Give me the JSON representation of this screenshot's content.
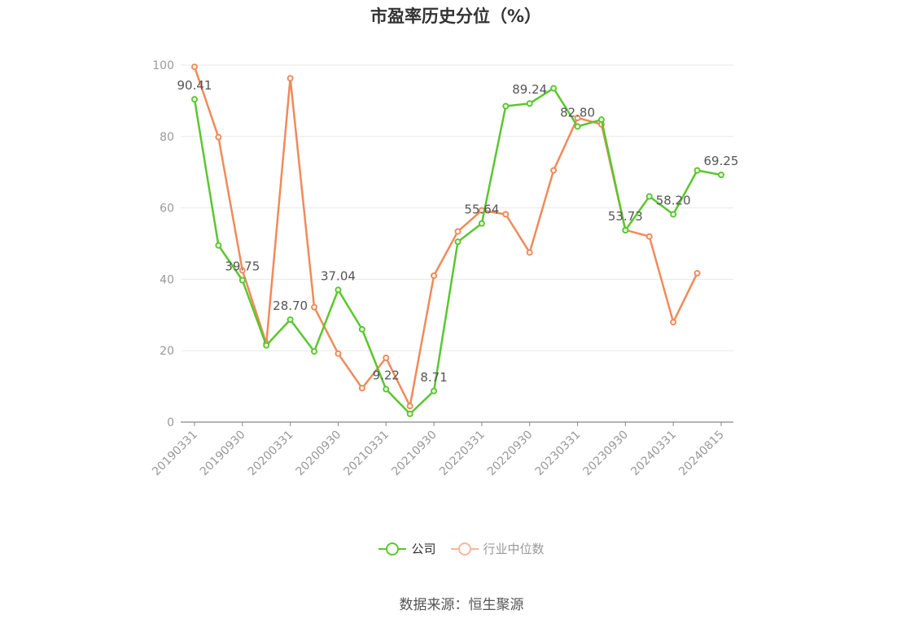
{
  "title": "市盈率历史分位（%）",
  "source": "数据来源：恒生聚源",
  "colors": {
    "company": "#5ac72f",
    "industry": "#f08a5a",
    "industry_legend": "#f5b89a",
    "axis": "#999999",
    "grid": "#e6e8ee",
    "label": "#555555"
  },
  "chart_data": {
    "type": "line",
    "ylim": [
      0,
      100
    ],
    "yticks": [
      0,
      20,
      40,
      60,
      80,
      100
    ],
    "grid": true,
    "legend_position": "bottom",
    "x": [
      "20190331",
      "20190630",
      "20190930",
      "20191231",
      "20200331",
      "20200630",
      "20200930",
      "20201231",
      "20210331",
      "20210630",
      "20210930",
      "20211231",
      "20220331",
      "20220630",
      "20220930",
      "20221231",
      "20230331",
      "20230630",
      "20230930",
      "20231231",
      "20240331",
      "20240630",
      "20240815"
    ],
    "xtick_labels": [
      "20190331",
      "20190930",
      "20200331",
      "20200930",
      "20210331",
      "20210930",
      "20220331",
      "20220930",
      "20230331",
      "20230930",
      "20240331",
      "20240815"
    ],
    "series": [
      {
        "name": "公司",
        "values": [
          90.41,
          49.5,
          39.75,
          21.5,
          28.7,
          19.8,
          37.04,
          26.0,
          9.22,
          2.3,
          8.71,
          50.5,
          55.64,
          88.5,
          89.24,
          93.5,
          82.8,
          84.7,
          53.73,
          63.2,
          58.2,
          70.5,
          69.25
        ],
        "labels": {
          "0": "90.41",
          "2": "39.75",
          "4": "28.70",
          "6": "37.04",
          "8": "9.22",
          "10": "8.71",
          "12": "55.64",
          "14": "89.24",
          "16": "82.80",
          "18": "53.73",
          "20": "58.20",
          "22": "69.25"
        }
      },
      {
        "name": "行业中位数",
        "values": [
          99.5,
          79.8,
          42.5,
          22.0,
          96.3,
          32.2,
          19.2,
          9.5,
          18.0,
          4.5,
          41.0,
          53.4,
          59.3,
          58.2,
          47.5,
          70.5,
          85.2,
          83.4,
          53.8,
          52.0,
          28.0,
          41.7,
          null
        ]
      }
    ]
  }
}
